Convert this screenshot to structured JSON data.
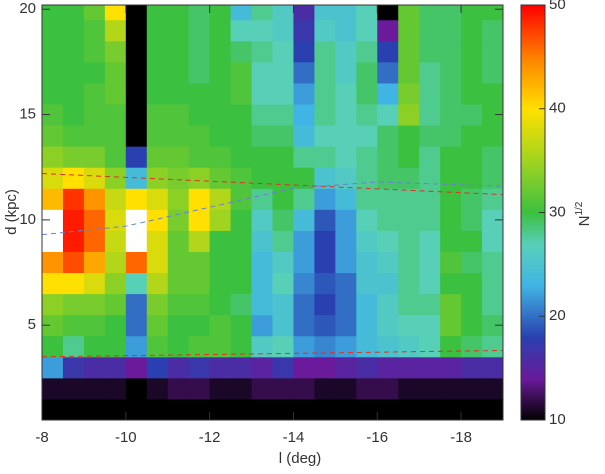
{
  "chart_data": {
    "type": "heatmap",
    "xlabel": "l (deg)",
    "ylabel": "d (kpc)",
    "colorbar_label": "N",
    "colorbar_label_sup": "1/2",
    "xlim": [
      -8,
      -19
    ],
    "ylim": [
      0.5,
      20.2
    ],
    "xticks": [
      -8,
      -10,
      -12,
      -14,
      -16,
      -18
    ],
    "yticks": [
      5,
      10,
      15,
      20
    ],
    "x_bins": [
      -8,
      -8.5,
      -9,
      -9.5,
      -10,
      -10.5,
      -11,
      -11.5,
      -12,
      -12.5,
      -13,
      -13.5,
      -14,
      -14.5,
      -15,
      -15.5,
      -16,
      -16.5,
      -17,
      -17.5,
      -18,
      -18.5,
      -19
    ],
    "y_bins": [
      0.5,
      1.5,
      2.5,
      3.5,
      4.5,
      5.5,
      6.5,
      7.5,
      8.5,
      9.5,
      10.5,
      11.5,
      12.5,
      13.5,
      14.5,
      15.5,
      16.5,
      17.5,
      18.5,
      19.5,
      20.5
    ],
    "z": [
      [
        10,
        10,
        10,
        10,
        10,
        10,
        10,
        10,
        10,
        10,
        10,
        10,
        10,
        10,
        10,
        10,
        10,
        10,
        10,
        10,
        10,
        10
      ],
      [
        11,
        11,
        11,
        11,
        10,
        11,
        12,
        12,
        11,
        11,
        12,
        12,
        12,
        11,
        11,
        12,
        12,
        11,
        11,
        11,
        11,
        11
      ],
      [
        22,
        17,
        16,
        16,
        14,
        18,
        16,
        17,
        16,
        16,
        15,
        17,
        14,
        14,
        15,
        16,
        15,
        15,
        15,
        15,
        16,
        16
      ],
      [
        30,
        28,
        30,
        30,
        22,
        31,
        30,
        31,
        31,
        30,
        26,
        27,
        22,
        21,
        22,
        24,
        25,
        26,
        27,
        30,
        29,
        28
      ],
      [
        32,
        31,
        31,
        30,
        20,
        32,
        30,
        30,
        31,
        30,
        22,
        25,
        20,
        19,
        20,
        24,
        26,
        27,
        27,
        32,
        30,
        29
      ],
      [
        34,
        33,
        33,
        32,
        20,
        33,
        31,
        31,
        30,
        29,
        24,
        25,
        20,
        18,
        20,
        24,
        26,
        28,
        28,
        32,
        30,
        28
      ],
      [
        40,
        40,
        38,
        34,
        27,
        36,
        32,
        32,
        30,
        30,
        24,
        27,
        21,
        19,
        20,
        25,
        25,
        28,
        27,
        30,
        30,
        28
      ],
      [
        44,
        47,
        43,
        36,
        46,
        38,
        32,
        32,
        30,
        30,
        24,
        26,
        22,
        18,
        22,
        25,
        26,
        28,
        27,
        31,
        29,
        28
      ],
      [
        null,
        49,
        46,
        37,
        null,
        38,
        32,
        36,
        30,
        30,
        25,
        28,
        22,
        18,
        22,
        26,
        27,
        28,
        27,
        30,
        30,
        27
      ],
      [
        null,
        49,
        46,
        38,
        null,
        40,
        33,
        40,
        35,
        30,
        26,
        29,
        24,
        19,
        22,
        27,
        28,
        28,
        28,
        30,
        29,
        27
      ],
      [
        42,
        48,
        44,
        37,
        40,
        38,
        34,
        40,
        36,
        31,
        28,
        30,
        28,
        22,
        24,
        28,
        28,
        28,
        28,
        30,
        29,
        28
      ],
      [
        38,
        40,
        38,
        34,
        24,
        34,
        33,
        34,
        32,
        31,
        30,
        30,
        30,
        25,
        26,
        28,
        29,
        29,
        28,
        30,
        30,
        29
      ],
      [
        34,
        33,
        33,
        31,
        18,
        32,
        32,
        31,
        31,
        30,
        30,
        30,
        28,
        28,
        27,
        28,
        29,
        30,
        28,
        30,
        30,
        29
      ],
      [
        32,
        31,
        31,
        31,
        10,
        31,
        31,
        31,
        30,
        30,
        29,
        29,
        24,
        27,
        27,
        27,
        29,
        30,
        29,
        29,
        30,
        30
      ],
      [
        31,
        30,
        31,
        31,
        10,
        31,
        31,
        30,
        30,
        30,
        28,
        28,
        23,
        28,
        27,
        28,
        27,
        34,
        28,
        29,
        29,
        30
      ],
      [
        30,
        30,
        31,
        32,
        10,
        30,
        30,
        30,
        30,
        31,
        27,
        27,
        22,
        28,
        27,
        29,
        23,
        33,
        28,
        29,
        30,
        30
      ],
      [
        30,
        30,
        30,
        32,
        10,
        30,
        30,
        29,
        30,
        31,
        27,
        27,
        20,
        28,
        26,
        29,
        20,
        32,
        28,
        29,
        30,
        29
      ],
      [
        30,
        30,
        31,
        33,
        10,
        30,
        30,
        29,
        30,
        29,
        28,
        27,
        18,
        28,
        26,
        28,
        18,
        32,
        29,
        29,
        30,
        29
      ],
      [
        30,
        30,
        31,
        36,
        10,
        30,
        30,
        29,
        30,
        27,
        27,
        26,
        17,
        26,
        25,
        27,
        14,
        32,
        29,
        29,
        30,
        29
      ],
      [
        30,
        30,
        32,
        40,
        10,
        30,
        30,
        29,
        30,
        24,
        28,
        26,
        16,
        25,
        25,
        27,
        10,
        32,
        29,
        29,
        30,
        30
      ]
    ],
    "clim": [
      10,
      50
    ],
    "cticks": [
      10,
      20,
      30,
      40,
      50
    ],
    "colorscale": [
      [
        10,
        "#000000"
      ],
      [
        14,
        "#6a1a9a"
      ],
      [
        18,
        "#2a40b0"
      ],
      [
        23,
        "#40b4e4"
      ],
      [
        27,
        "#58d0b8"
      ],
      [
        30,
        "#3cc040"
      ],
      [
        35,
        "#a0d420"
      ],
      [
        40,
        "#ffe000"
      ],
      [
        45,
        "#ff8000"
      ],
      [
        50,
        "#ff0000"
      ]
    ],
    "missing_color": "#ffffff",
    "lines": [
      {
        "color": "#e03020",
        "x": [
          -8,
          -19
        ],
        "y": [
          12.2,
          11.2
        ]
      },
      {
        "color": "#e03020",
        "x": [
          -8,
          -19
        ],
        "y": [
          3.5,
          3.8
        ]
      },
      {
        "color": "#6a80d0",
        "x": [
          -8,
          -10,
          -12,
          -14,
          -16,
          -19
        ],
        "y": [
          9.3,
          9.7,
          10.6,
          11.5,
          11.8,
          11.6
        ]
      }
    ]
  }
}
